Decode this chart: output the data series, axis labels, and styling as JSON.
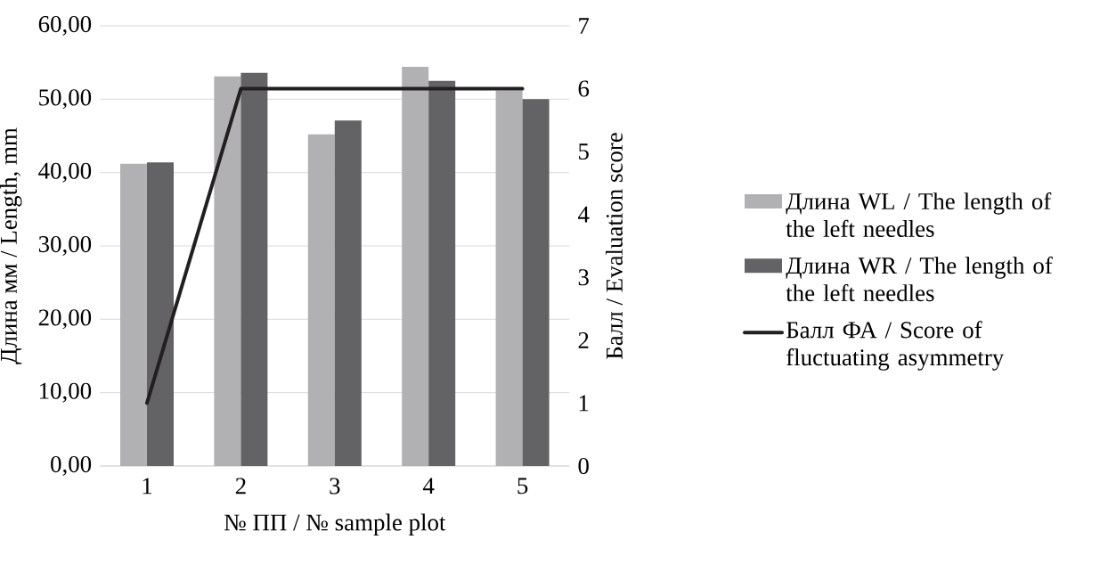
{
  "chart_data": {
    "type": "bar",
    "categories": [
      "1",
      "2",
      "3",
      "4",
      "5"
    ],
    "xlabel": "№ ПП / № sample plot",
    "ylabel": "Длина мм / Length, mm",
    "y2label": "Балл / Evaluation score",
    "ylim": [
      0,
      60
    ],
    "yticks": [
      {
        "value": 0,
        "label": "0,00"
      },
      {
        "value": 10,
        "label": "10,00"
      },
      {
        "value": 20,
        "label": "20,00"
      },
      {
        "value": 30,
        "label": "30,00"
      },
      {
        "value": 40,
        "label": "40,00"
      },
      {
        "value": 50,
        "label": "50,00"
      },
      {
        "value": 60,
        "label": "60,00"
      }
    ],
    "y2lim": [
      0,
      7
    ],
    "y2ticks": [
      0,
      1,
      2,
      3,
      4,
      5,
      6,
      7
    ],
    "series": [
      {
        "name": "Длина WL / The length of the left needles",
        "color": "#b1b1b4",
        "values": [
          41.2,
          53.1,
          45.2,
          54.4,
          51.2
        ]
      },
      {
        "name": "Длина WR / The length of the left needles",
        "color": "#636365",
        "values": [
          41.4,
          53.6,
          47.1,
          52.5,
          50.0
        ]
      },
      {
        "name": "Балл ФА / Score of fluctuating asymmetry",
        "color": "#231f20",
        "type": "line",
        "axis": "y2",
        "values": [
          1,
          6,
          6,
          6,
          6
        ]
      }
    ],
    "grid": "y",
    "legend": "right"
  }
}
